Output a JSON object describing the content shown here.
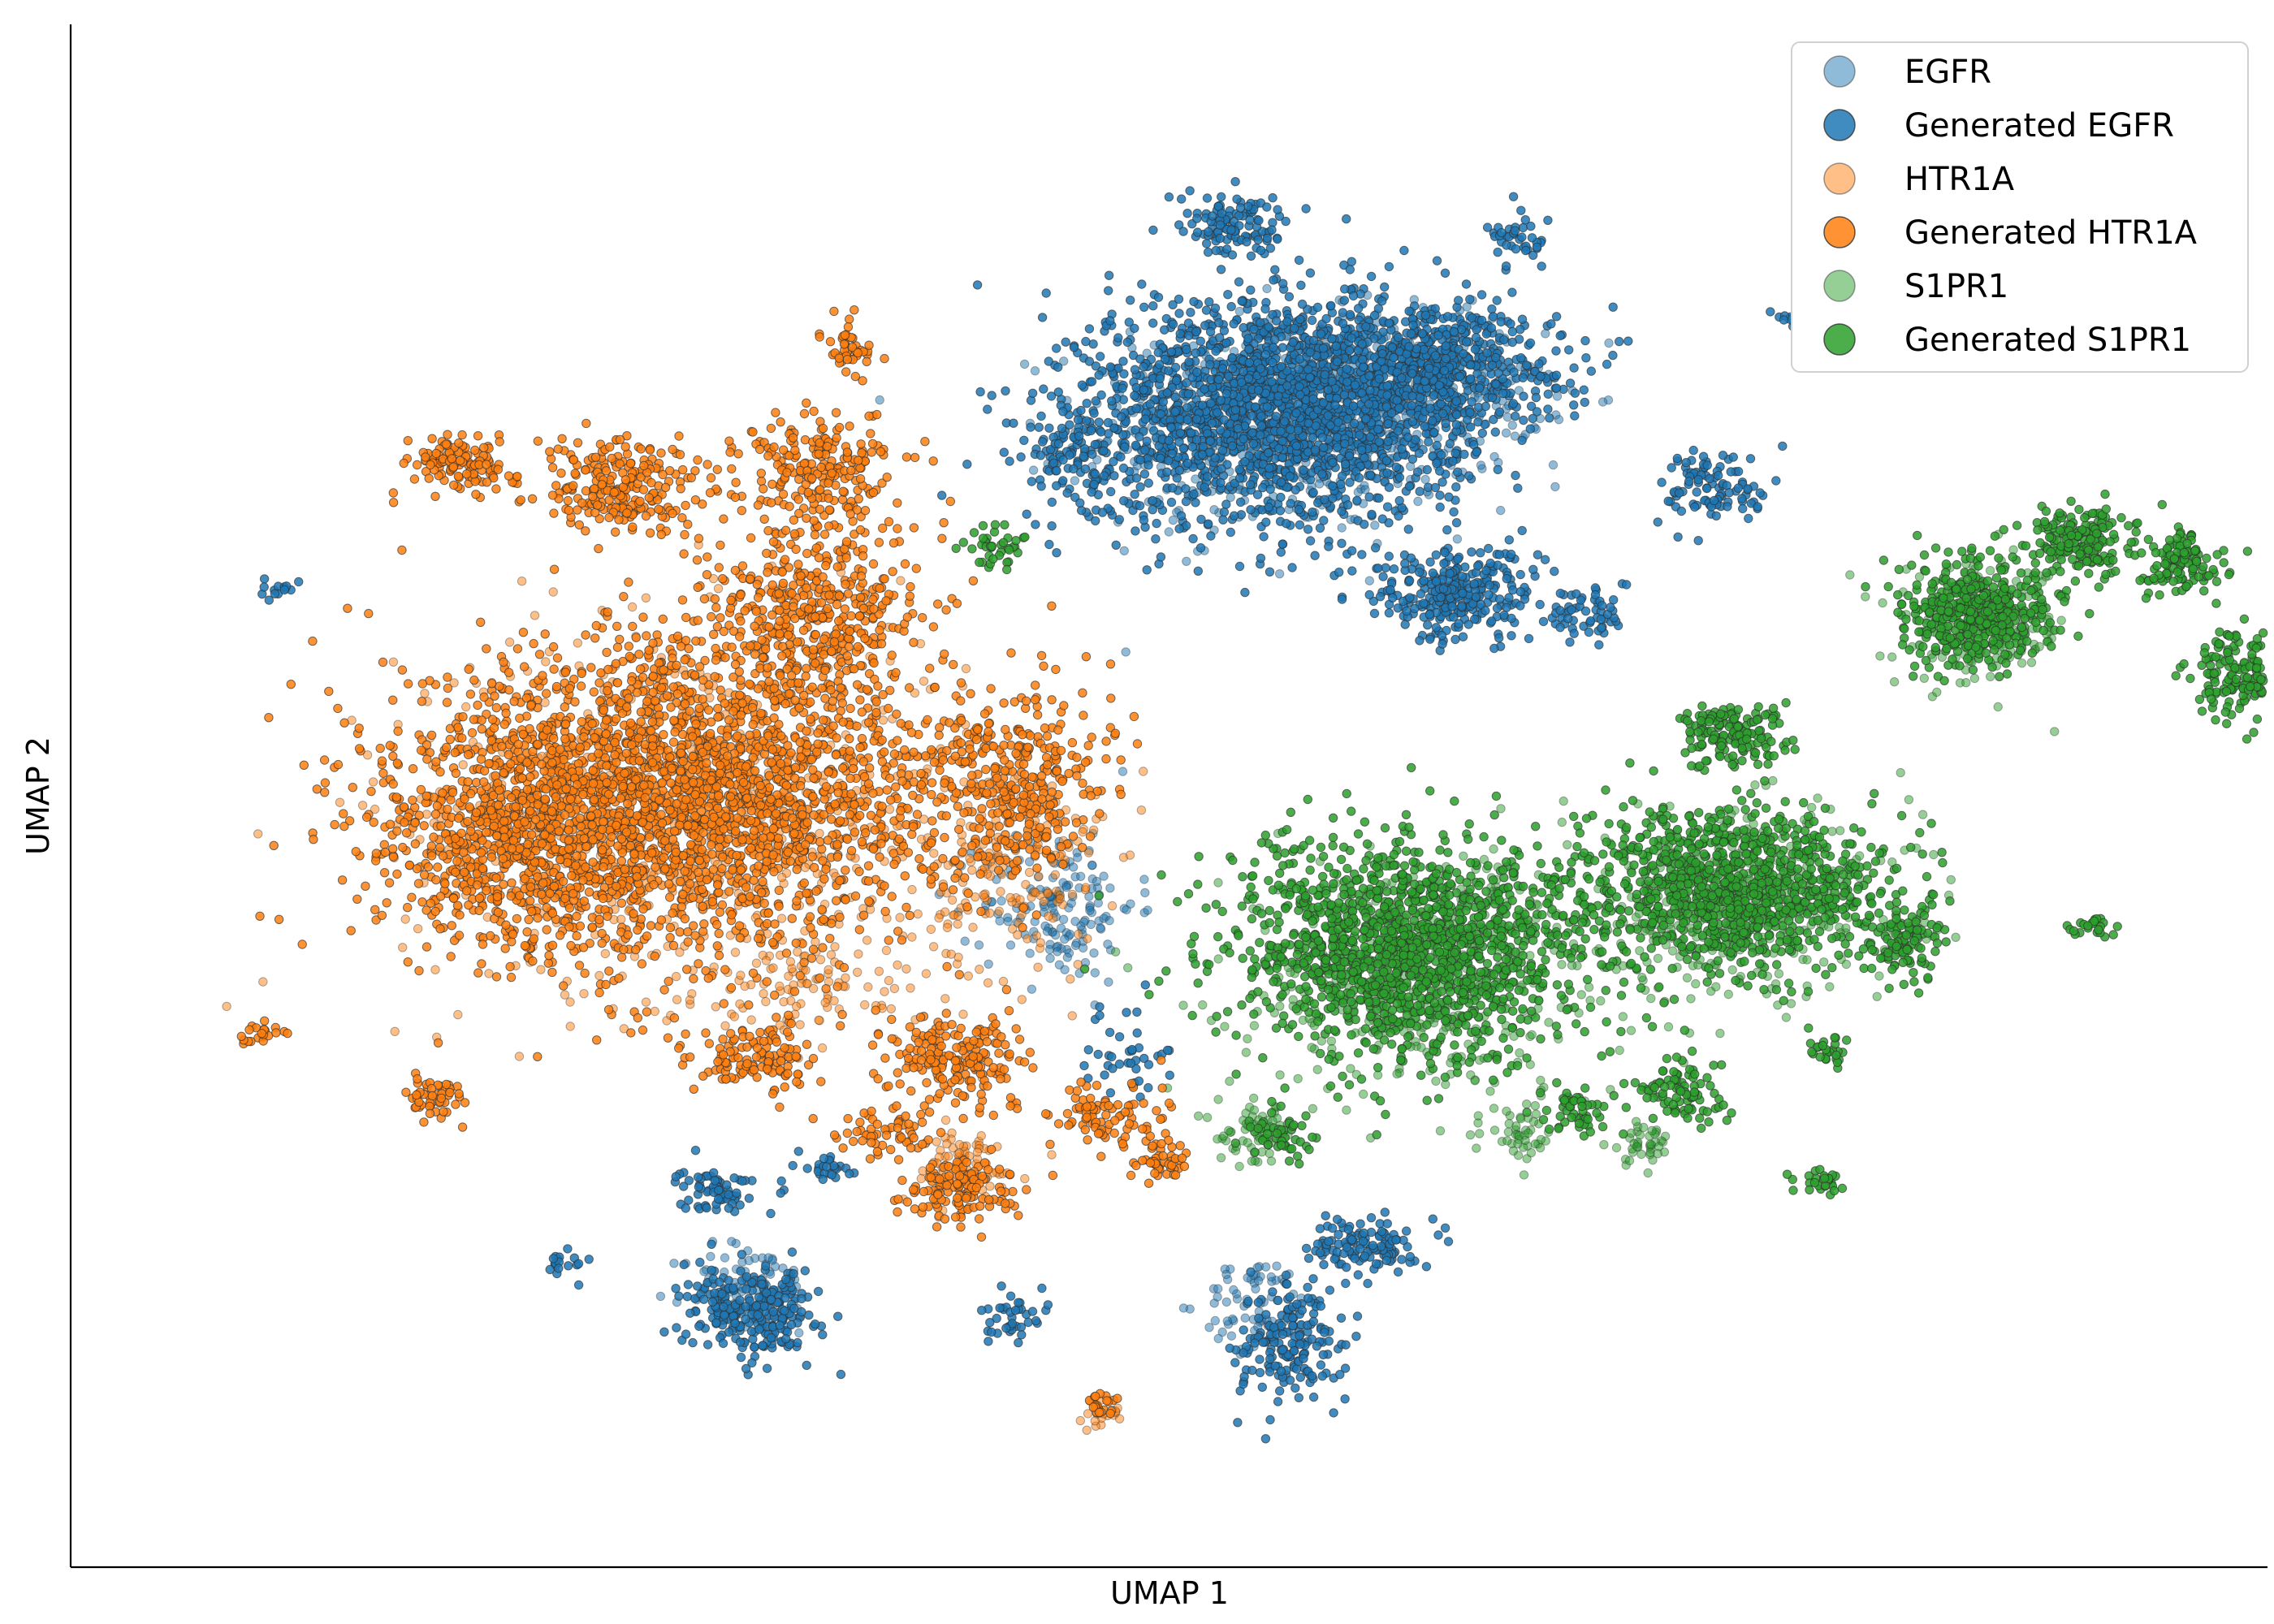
{
  "chart_data": {
    "type": "scatter",
    "title": "",
    "xlabel": "UMAP 1",
    "ylabel": "UMAP 2",
    "xlim": [
      0,
      100
    ],
    "ylim": [
      0,
      100
    ],
    "grid": false,
    "ticks_shown": false,
    "legend_position": "top-right",
    "series": [
      {
        "name": "EGFR",
        "color": "#1f77b4",
        "alpha": 0.5,
        "clusters": [
          {
            "cx": 55,
            "cy": 74,
            "rx": 9,
            "ry": 7,
            "n": 520
          },
          {
            "cx": 61,
            "cy": 76,
            "rx": 6,
            "ry": 5,
            "n": 300
          },
          {
            "cx": 45,
            "cy": 43,
            "rx": 3.5,
            "ry": 5,
            "n": 160
          },
          {
            "cx": 31,
            "cy": 18,
            "rx": 3,
            "ry": 3,
            "n": 90
          },
          {
            "cx": 54,
            "cy": 17,
            "rx": 2.5,
            "ry": 3,
            "n": 70
          }
        ]
      },
      {
        "name": "Generated EGFR",
        "color": "#1f77b4",
        "alpha": 0.85,
        "clusters": [
          {
            "cx": 55,
            "cy": 75,
            "rx": 8.5,
            "ry": 7.5,
            "n": 1900
          },
          {
            "cx": 62,
            "cy": 78,
            "rx": 6,
            "ry": 4,
            "n": 500
          },
          {
            "cx": 63,
            "cy": 63,
            "rx": 3.5,
            "ry": 3,
            "n": 280
          },
          {
            "cx": 69,
            "cy": 62,
            "rx": 2,
            "ry": 2,
            "n": 60
          },
          {
            "cx": 75,
            "cy": 70,
            "rx": 2.5,
            "ry": 2.5,
            "n": 100
          },
          {
            "cx": 53,
            "cy": 87,
            "rx": 2.5,
            "ry": 2,
            "n": 110
          },
          {
            "cx": 66,
            "cy": 86,
            "rx": 1.5,
            "ry": 1.5,
            "n": 40
          },
          {
            "cx": 46,
            "cy": 72,
            "rx": 2.5,
            "ry": 4,
            "n": 120
          },
          {
            "cx": 29.5,
            "cy": 24.5,
            "rx": 1.8,
            "ry": 1.5,
            "n": 70
          },
          {
            "cx": 31,
            "cy": 16.5,
            "rx": 3,
            "ry": 2.8,
            "n": 250
          },
          {
            "cx": 43,
            "cy": 16,
            "rx": 1.5,
            "ry": 1.5,
            "n": 40
          },
          {
            "cx": 55.5,
            "cy": 14.5,
            "rx": 2.5,
            "ry": 4,
            "n": 180
          },
          {
            "cx": 59,
            "cy": 21,
            "rx": 2.3,
            "ry": 1.8,
            "n": 120
          },
          {
            "cx": 34.5,
            "cy": 26,
            "rx": 1,
            "ry": 1,
            "n": 25
          },
          {
            "cx": 22.5,
            "cy": 19.5,
            "rx": 1.2,
            "ry": 1.2,
            "n": 18
          },
          {
            "cx": 9.5,
            "cy": 63.5,
            "rx": 1,
            "ry": 0.5,
            "n": 14
          },
          {
            "cx": 78.5,
            "cy": 81,
            "rx": 0.8,
            "ry": 0.8,
            "n": 14
          },
          {
            "cx": 48,
            "cy": 33,
            "rx": 2,
            "ry": 3,
            "n": 40
          }
        ]
      },
      {
        "name": "HTR1A",
        "color": "#ff7f0e",
        "alpha": 0.5,
        "clusters": [
          {
            "cx": 28,
            "cy": 49,
            "rx": 13,
            "ry": 12,
            "n": 650
          },
          {
            "cx": 43,
            "cy": 45,
            "rx": 4,
            "ry": 7,
            "n": 170
          },
          {
            "cx": 34,
            "cy": 38,
            "rx": 5,
            "ry": 3,
            "n": 90
          },
          {
            "cx": 40.5,
            "cy": 26,
            "rx": 3,
            "ry": 2.5,
            "n": 70
          },
          {
            "cx": 47,
            "cy": 10,
            "rx": 1,
            "ry": 1,
            "n": 20
          }
        ]
      },
      {
        "name": "Generated HTR1A",
        "color": "#ff7f0e",
        "alpha": 0.85,
        "clusters": [
          {
            "cx": 28,
            "cy": 50,
            "rx": 12,
            "ry": 10,
            "n": 2600
          },
          {
            "cx": 20,
            "cy": 47,
            "rx": 6,
            "ry": 7,
            "n": 500
          },
          {
            "cx": 34,
            "cy": 62,
            "rx": 5,
            "ry": 6,
            "n": 420
          },
          {
            "cx": 25,
            "cy": 70,
            "rx": 4,
            "ry": 3,
            "n": 240
          },
          {
            "cx": 34,
            "cy": 71,
            "rx": 3.5,
            "ry": 3.5,
            "n": 220
          },
          {
            "cx": 35.5,
            "cy": 79,
            "rx": 1.2,
            "ry": 1.8,
            "n": 45
          },
          {
            "cx": 17.5,
            "cy": 71.5,
            "rx": 2.2,
            "ry": 1.8,
            "n": 120
          },
          {
            "cx": 43,
            "cy": 51,
            "rx": 4,
            "ry": 6,
            "n": 340
          },
          {
            "cx": 40.5,
            "cy": 33,
            "rx": 3,
            "ry": 3,
            "n": 200
          },
          {
            "cx": 40.5,
            "cy": 24.5,
            "rx": 2.5,
            "ry": 2,
            "n": 140
          },
          {
            "cx": 31,
            "cy": 33,
            "rx": 3,
            "ry": 2.5,
            "n": 130
          },
          {
            "cx": 16.5,
            "cy": 30.5,
            "rx": 1.3,
            "ry": 1.5,
            "n": 55
          },
          {
            "cx": 8.7,
            "cy": 34.5,
            "rx": 1.2,
            "ry": 0.8,
            "n": 22
          },
          {
            "cx": 46.8,
            "cy": 10.5,
            "rx": 0.9,
            "ry": 1,
            "n": 22
          },
          {
            "cx": 47,
            "cy": 29,
            "rx": 2.5,
            "ry": 2.5,
            "n": 90
          },
          {
            "cx": 37,
            "cy": 28,
            "rx": 2.5,
            "ry": 1.5,
            "n": 60
          },
          {
            "cx": 49.5,
            "cy": 26.5,
            "rx": 1.5,
            "ry": 1.5,
            "n": 45
          }
        ]
      },
      {
        "name": "S1PR1",
        "color": "#2ca02c",
        "alpha": 0.5,
        "clusters": [
          {
            "cx": 62,
            "cy": 38,
            "rx": 9,
            "ry": 8,
            "n": 420
          },
          {
            "cx": 76,
            "cy": 43,
            "rx": 8,
            "ry": 6,
            "n": 320
          },
          {
            "cx": 87,
            "cy": 61,
            "rx": 4,
            "ry": 4,
            "n": 170
          },
          {
            "cx": 54,
            "cy": 28,
            "rx": 1.8,
            "ry": 2,
            "n": 60
          },
          {
            "cx": 66,
            "cy": 28,
            "rx": 1.5,
            "ry": 1.5,
            "n": 40
          },
          {
            "cx": 71.5,
            "cy": 27.5,
            "rx": 1.5,
            "ry": 1.5,
            "n": 40
          }
        ]
      },
      {
        "name": "Generated S1PR1",
        "color": "#2ca02c",
        "alpha": 0.85,
        "clusters": [
          {
            "cx": 61,
            "cy": 40,
            "rx": 8,
            "ry": 7,
            "n": 1500
          },
          {
            "cx": 75.5,
            "cy": 44,
            "rx": 7,
            "ry": 5,
            "n": 1050
          },
          {
            "cx": 75.5,
            "cy": 54,
            "rx": 2.5,
            "ry": 2,
            "n": 170
          },
          {
            "cx": 87,
            "cy": 62,
            "rx": 3.5,
            "ry": 3.5,
            "n": 450
          },
          {
            "cx": 91.5,
            "cy": 66.5,
            "rx": 2.2,
            "ry": 2,
            "n": 190
          },
          {
            "cx": 96,
            "cy": 65,
            "rx": 1.8,
            "ry": 2,
            "n": 120
          },
          {
            "cx": 99,
            "cy": 58,
            "rx": 2.5,
            "ry": 3,
            "n": 220
          },
          {
            "cx": 83.5,
            "cy": 40.5,
            "rx": 2,
            "ry": 2.5,
            "n": 110
          },
          {
            "cx": 73.5,
            "cy": 31,
            "rx": 2,
            "ry": 2,
            "n": 90
          },
          {
            "cx": 68.5,
            "cy": 29.5,
            "rx": 1.5,
            "ry": 1.5,
            "n": 50
          },
          {
            "cx": 80,
            "cy": 33.5,
            "rx": 1,
            "ry": 1,
            "n": 25
          },
          {
            "cx": 79.5,
            "cy": 25,
            "rx": 1.3,
            "ry": 0.8,
            "n": 28
          },
          {
            "cx": 92,
            "cy": 41.5,
            "rx": 0.9,
            "ry": 0.7,
            "n": 24
          },
          {
            "cx": 42,
            "cy": 66,
            "rx": 1.5,
            "ry": 1.5,
            "n": 40
          },
          {
            "cx": 55,
            "cy": 28,
            "rx": 1.5,
            "ry": 2,
            "n": 50
          }
        ]
      }
    ]
  }
}
